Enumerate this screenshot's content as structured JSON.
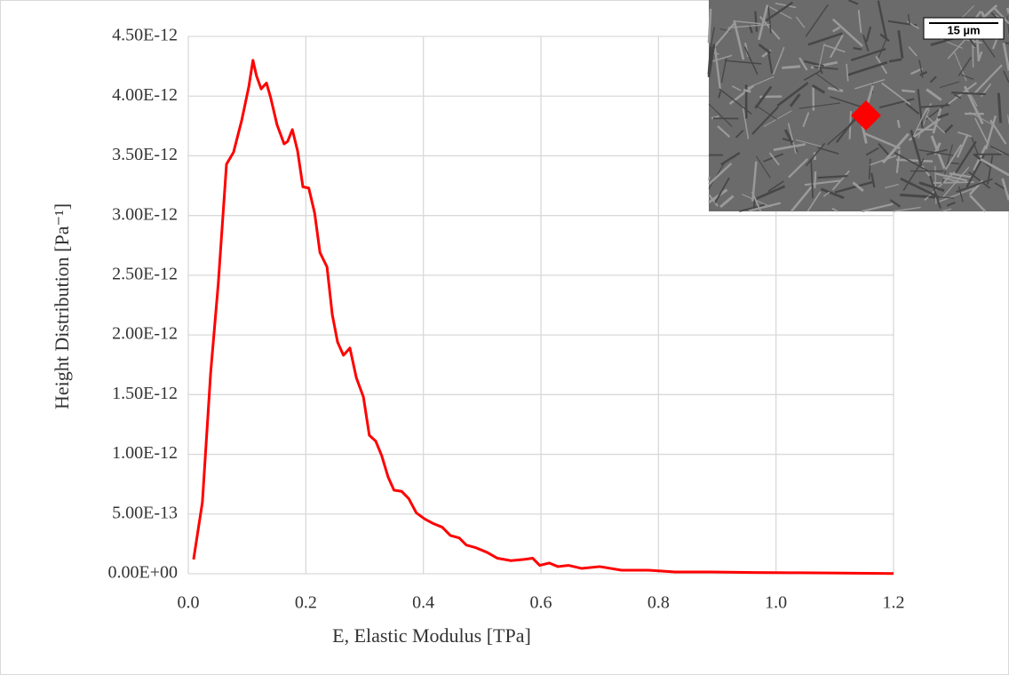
{
  "chart_data": {
    "type": "line",
    "x_label": "E, Elastic Modulus [TPa]",
    "y_label": "Height Distribution [Pa⁻¹]",
    "inset_scale_bar": "15 µm",
    "grid": true,
    "xlim": [
      0,
      1.2
    ],
    "xticks": [
      {
        "value": 0,
        "label": "0.0"
      },
      0.2,
      0.4,
      0.6,
      0.8,
      {
        "value": 1,
        "label": "1.0"
      },
      1.2
    ],
    "ylim": [
      0,
      4.5e-12
    ],
    "yticks": [
      {
        "value": 0,
        "label": "0.00E+00"
      },
      {
        "value": 5e-13,
        "label": "5.00E-13"
      },
      {
        "value": 1e-12,
        "label": "1.00E-12"
      },
      {
        "value": 1.5e-12,
        "label": "1.50E-12"
      },
      {
        "value": 2e-12,
        "label": "2.00E-12"
      },
      {
        "value": 2.5e-12,
        "label": "2.50E-12"
      },
      {
        "value": 3e-12,
        "label": "3.00E-12"
      },
      {
        "value": 3.5e-12,
        "label": "3.50E-12"
      },
      {
        "value": 4e-12,
        "label": "4.00E-12"
      },
      {
        "value": 4.5e-12,
        "label": "4.50E-12"
      }
    ],
    "series": [
      {
        "color": "#ff0000",
        "x": [
          0.009,
          0.024,
          0.038,
          0.051,
          0.065,
          0.077,
          0.091,
          0.103,
          0.11,
          0.116,
          0.124,
          0.133,
          0.14,
          0.151,
          0.163,
          0.169,
          0.177,
          0.186,
          0.195,
          0.205,
          0.215,
          0.224,
          0.236,
          0.245,
          0.254,
          0.264,
          0.275,
          0.286,
          0.298,
          0.308,
          0.319,
          0.329,
          0.34,
          0.35,
          0.363,
          0.375,
          0.388,
          0.402,
          0.417,
          0.432,
          0.446,
          0.461,
          0.473,
          0.488,
          0.508,
          0.526,
          0.549,
          0.571,
          0.586,
          0.598,
          0.614,
          0.629,
          0.647,
          0.669,
          0.7,
          0.737,
          0.783,
          0.828,
          0.889,
          0.964,
          1.04,
          1.115,
          1.2
        ],
        "values": [
          1.2e-13,
          6e-13,
          1.68e-12,
          2.43e-12,
          3.43e-12,
          3.53e-12,
          3.8e-12,
          4.08e-12,
          4.3e-12,
          4.17e-12,
          4.06e-12,
          4.11e-12,
          3.99e-12,
          3.76e-12,
          3.6e-12,
          3.62e-12,
          3.72e-12,
          3.54e-12,
          3.24e-12,
          3.23e-12,
          3.02e-12,
          2.69e-12,
          2.57e-12,
          2.17e-12,
          1.94e-12,
          1.83e-12,
          1.89e-12,
          1.64e-12,
          1.48e-12,
          1.16e-12,
          1.11e-12,
          9.9e-13,
          8.1e-13,
          7e-13,
          6.9e-13,
          6.3e-13,
          5.1e-13,
          4.6e-13,
          4.2e-13,
          3.9e-13,
          3.2e-13,
          3e-13,
          2.4e-13,
          2.2e-13,
          1.8e-13,
          1.3e-13,
          1.1e-13,
          1.2e-13,
          1.3e-13,
          7e-14,
          9e-14,
          6e-14,
          7e-14,
          4.5e-14,
          6e-14,
          3e-14,
          3e-14,
          1.5e-14,
          1.5e-14,
          1e-14,
          8e-15,
          6e-15,
          2e-15
        ]
      }
    ]
  }
}
